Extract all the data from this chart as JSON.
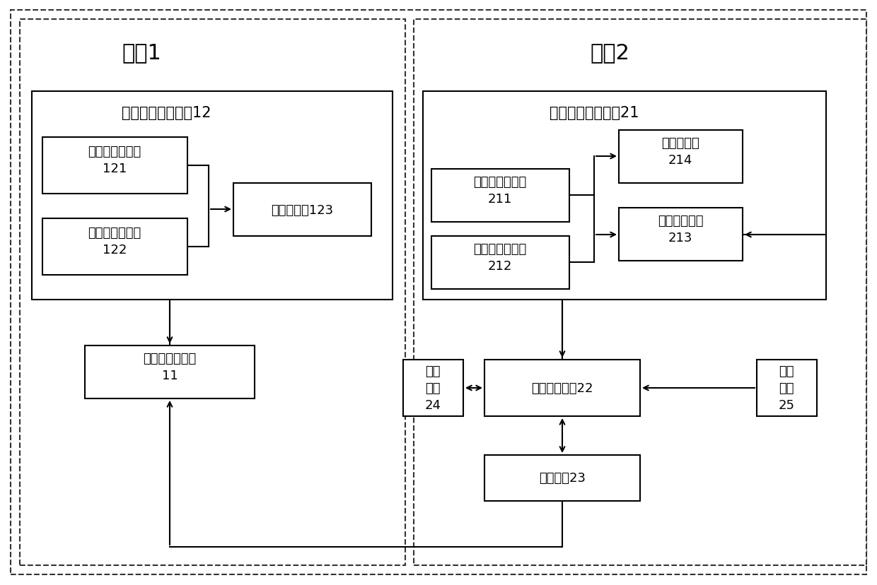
{
  "bg_color": "#ffffff",
  "title_master": "主机1",
  "title_slave": "从机2",
  "box_master_module": "主机数据采集模块12",
  "box_slave_module": "从机数据采集模块21",
  "box_cpu": "核心处理器模块\n11",
  "box_v121": "主机电压传感器\n121",
  "box_i122": "主机电流传感器\n122",
  "box_daq123": "数据采集卡123",
  "box_v211": "从机电压传感器\n211",
  "box_i212": "从机电流传感器\n212",
  "box_pll214": "锁相环电路\n214",
  "box_sig213": "信号调理电路\n213",
  "box_disp24": "显示\n模块\n24",
  "box_proc22": "数据处理模块22",
  "box_comm23": "通讯模块23",
  "box_pwr25": "电源\n模块\n25"
}
